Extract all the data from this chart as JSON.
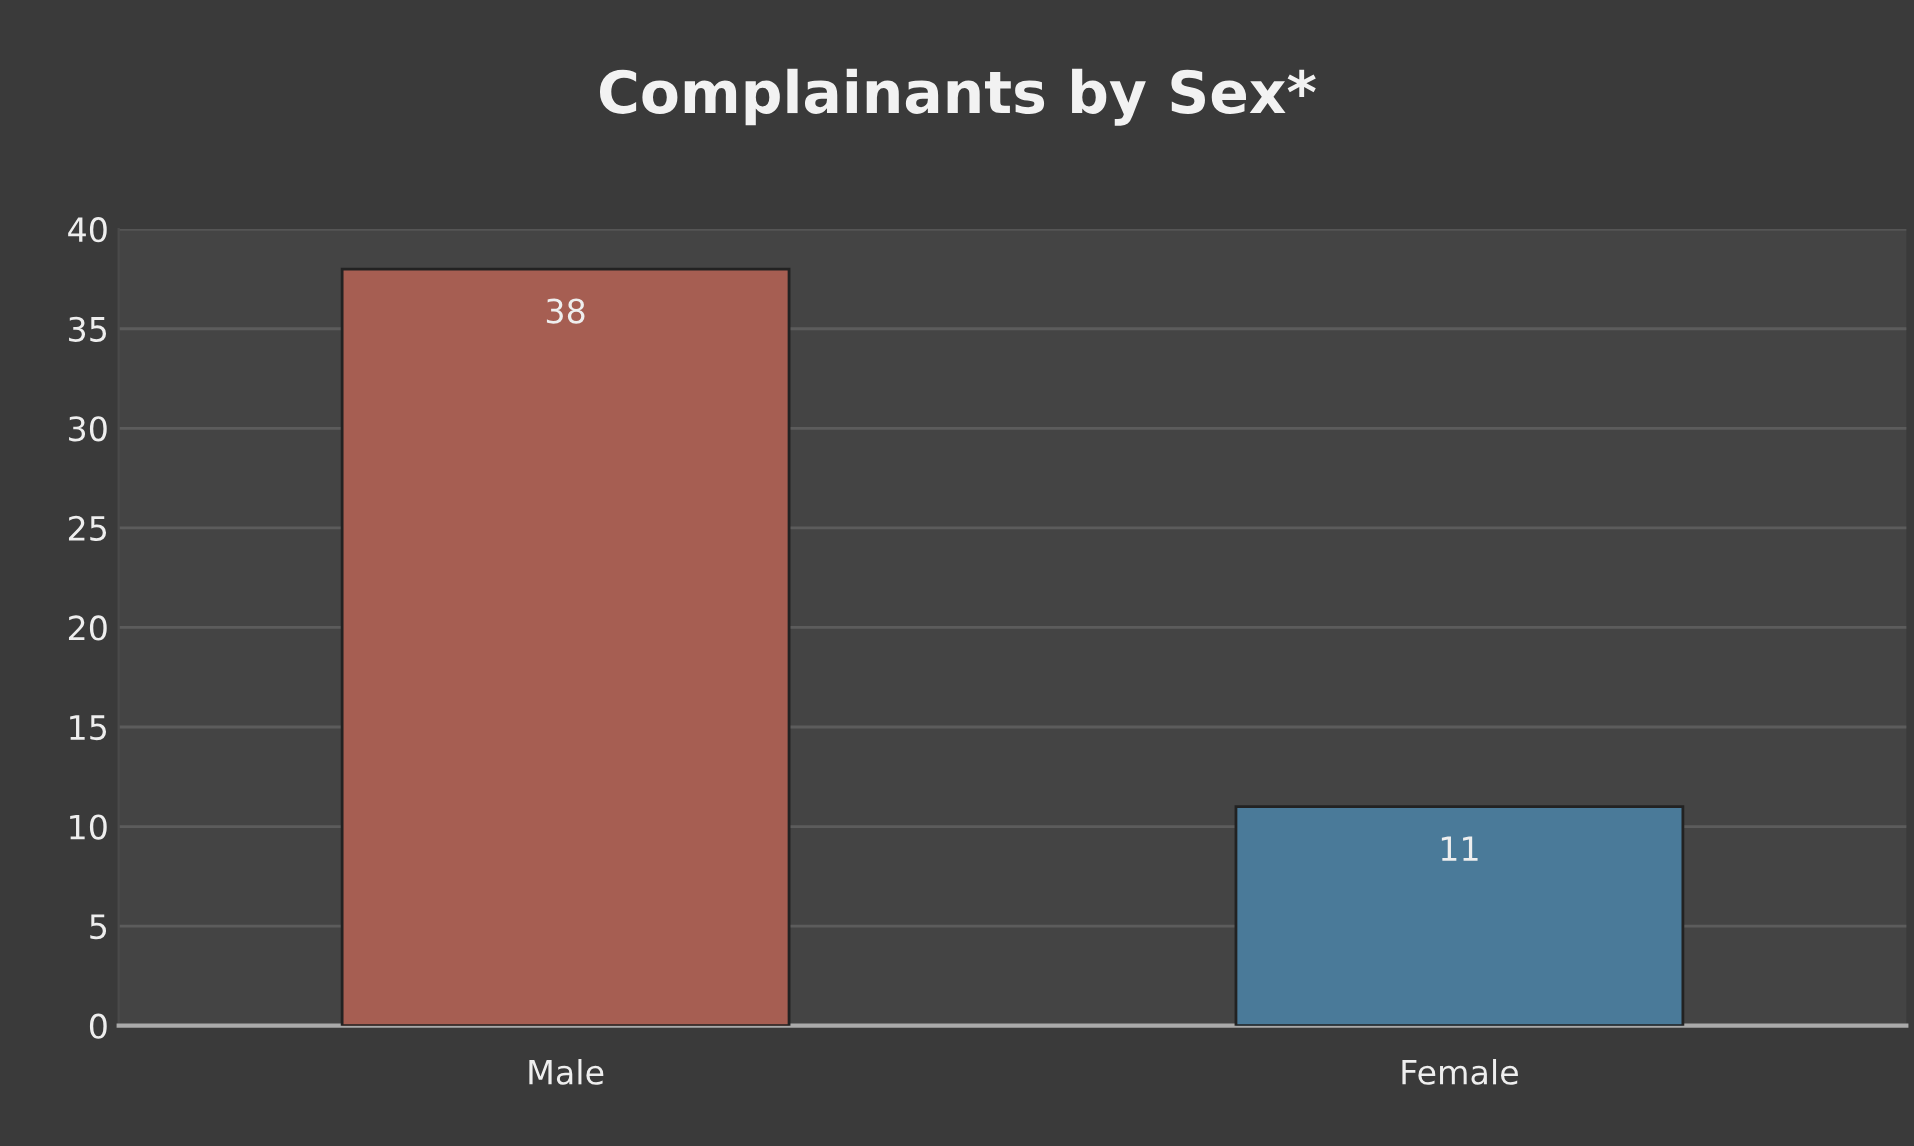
{
  "chart_data": {
    "type": "bar",
    "title": "Complainants by Sex*",
    "categories": [
      "Male",
      "Female"
    ],
    "values": [
      38,
      11
    ],
    "colors": [
      "#a65e52",
      "#4a7a99"
    ],
    "ylim": [
      0,
      40
    ],
    "yticks": [
      0,
      5,
      10,
      15,
      20,
      25,
      30,
      35,
      40
    ],
    "grid": "y",
    "data_labels": true,
    "legend": false
  }
}
